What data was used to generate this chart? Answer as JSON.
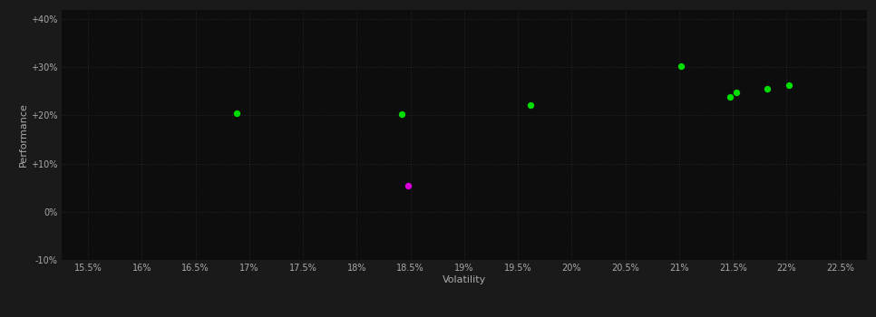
{
  "background_color": "#1a1a1a",
  "plot_bg_color": "#0d0d0d",
  "grid_color": "#2a2a2a",
  "text_color": "#aaaaaa",
  "xlabel": "Volatility",
  "ylabel": "Performance",
  "xlim": [
    15.25,
    22.75
  ],
  "ylim": [
    -10,
    42
  ],
  "xticks": [
    15.5,
    16.0,
    16.5,
    17.0,
    17.5,
    18.0,
    18.5,
    19.0,
    19.5,
    20.0,
    20.5,
    21.0,
    21.5,
    22.0,
    22.5
  ],
  "yticks": [
    -10,
    0,
    10,
    20,
    30,
    40
  ],
  "ytick_labels": [
    "-10%",
    "0%",
    "+10%",
    "+20%",
    "+30%",
    "+40%"
  ],
  "xtick_labels": [
    "15.5%",
    "16%",
    "16.5%",
    "17%",
    "17.5%",
    "18%",
    "18.5%",
    "19%",
    "19.5%",
    "20%",
    "20.5%",
    "21%",
    "21.5%",
    "22%",
    "22.5%"
  ],
  "green_points": [
    [
      16.88,
      20.5
    ],
    [
      18.42,
      20.2
    ],
    [
      19.62,
      22.2
    ],
    [
      21.02,
      30.2
    ],
    [
      21.47,
      23.8
    ],
    [
      21.53,
      24.8
    ],
    [
      21.82,
      25.5
    ],
    [
      22.02,
      26.3
    ]
  ],
  "magenta_points": [
    [
      18.48,
      5.5
    ]
  ],
  "green_color": "#00dd00",
  "magenta_color": "#dd00dd",
  "marker_size": 28
}
